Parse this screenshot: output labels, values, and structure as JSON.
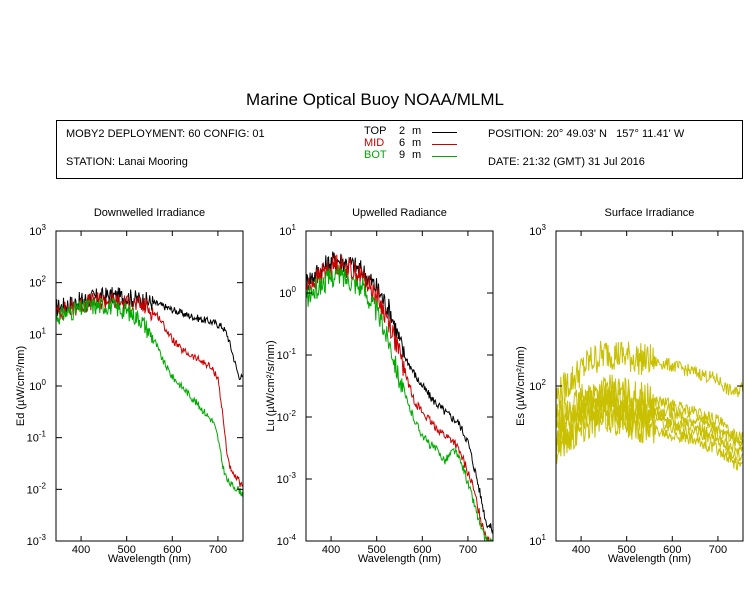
{
  "title": "Marine Optical Buoy NOAA/MLML",
  "info": {
    "deployment": "MOBY2 DEPLOYMENT: 60 CONFIG: 01",
    "station": "STATION: Lanai Mooring",
    "position": "POSITION: 20° 49.03' N   157° 11.41' W",
    "date": "DATE: 21:32 (GMT) 31 Jul 2016"
  },
  "legend": [
    {
      "label": "TOP",
      "depth": "2",
      "unit": "m",
      "color": "#000000"
    },
    {
      "label": "MID",
      "depth": "6",
      "unit": "m",
      "color": "#cc0000"
    },
    {
      "label": "BOT",
      "depth": "9",
      "unit": "m",
      "color": "#00aa00"
    }
  ],
  "chart_data": [
    {
      "type": "line",
      "title": "Downwelled Irradiance",
      "xlabel": "Wavelength (nm)",
      "ylabel_main": "Ed",
      "ylabel_units": "(µW/cm²/nm)",
      "xlim": [
        345,
        755
      ],
      "ylim": [
        0.001,
        1000
      ],
      "yscale": "log",
      "xticks": [
        400,
        500,
        600,
        700
      ],
      "ytick_exponents": [
        "-3",
        "-2",
        "-1",
        "0",
        "1",
        "2",
        "3"
      ],
      "series": [
        {
          "label": "TOP",
          "color": "#000000",
          "x": [
            345,
            380,
            420,
            460,
            500,
            540,
            570,
            600,
            630,
            660,
            690,
            710,
            720,
            730,
            745,
            755
          ],
          "y": [
            32,
            40,
            50,
            56,
            52,
            45,
            38,
            30,
            24,
            20,
            17,
            14,
            10,
            5,
            1.6,
            1.4
          ]
        },
        {
          "label": "MID",
          "color": "#cc0000",
          "x": [
            345,
            380,
            420,
            460,
            500,
            540,
            570,
            590,
            600,
            620,
            650,
            680,
            700,
            710,
            720,
            730,
            745,
            755
          ],
          "y": [
            26,
            32,
            42,
            45,
            40,
            35,
            22,
            11,
            8,
            5,
            3.5,
            2.5,
            1.5,
            0.3,
            0.05,
            0.02,
            0.015,
            0.01
          ]
        },
        {
          "label": "BOT",
          "color": "#00aa00",
          "x": [
            345,
            380,
            420,
            460,
            500,
            530,
            560,
            580,
            600,
            630,
            660,
            690,
            700,
            710,
            720,
            730,
            745,
            755
          ],
          "y": [
            22,
            28,
            35,
            36,
            28,
            20,
            8,
            3,
            1.5,
            0.8,
            0.4,
            0.2,
            0.1,
            0.03,
            0.015,
            0.012,
            0.01,
            0.008
          ]
        }
      ]
    },
    {
      "type": "line",
      "title": "Upwelled Radiance",
      "xlabel": "Wavelength (nm)",
      "ylabel_main": "Lu",
      "ylabel_units": "(µW/cm²/sr/nm)",
      "xlim": [
        345,
        755
      ],
      "ylim": [
        0.0001,
        10
      ],
      "yscale": "log",
      "xticks": [
        400,
        500,
        600,
        700
      ],
      "ytick_exponents": [
        "-4",
        "-3",
        "-2",
        "-1",
        "0",
        "1"
      ],
      "series": [
        {
          "label": "TOP",
          "color": "#000000",
          "x": [
            345,
            380,
            410,
            440,
            470,
            500,
            530,
            560,
            590,
            620,
            650,
            680,
            700,
            720,
            740,
            755
          ],
          "y": [
            1.5,
            2.5,
            3.5,
            3.0,
            2.2,
            1.2,
            0.5,
            0.1,
            0.04,
            0.02,
            0.012,
            0.008,
            0.004,
            0.001,
            0.0002,
            0.00015
          ]
        },
        {
          "label": "MID",
          "color": "#cc0000",
          "x": [
            345,
            380,
            410,
            440,
            470,
            500,
            530,
            560,
            580,
            600,
            620,
            650,
            670,
            690,
            710,
            730,
            745
          ],
          "y": [
            1.2,
            2,
            3,
            2.5,
            1.8,
            0.9,
            0.3,
            0.06,
            0.02,
            0.012,
            0.008,
            0.005,
            0.004,
            0.002,
            0.0008,
            0.0002,
            0.0001
          ]
        },
        {
          "label": "BOT",
          "color": "#00aa00",
          "x": [
            345,
            380,
            410,
            440,
            470,
            500,
            530,
            550,
            570,
            590,
            610,
            630,
            650,
            670,
            690,
            710,
            730,
            740
          ],
          "y": [
            0.8,
            1.4,
            2,
            1.7,
            1.2,
            0.5,
            0.15,
            0.04,
            0.015,
            0.007,
            0.004,
            0.003,
            0.002,
            0.003,
            0.0015,
            0.0005,
            0.00015,
            0.0001
          ]
        }
      ]
    },
    {
      "type": "line",
      "title": "Surface Irradiance",
      "xlabel": "Wavelength (nm)",
      "ylabel_main": "Es",
      "ylabel_units": "(µW/cm²/nm)",
      "xlim": [
        345,
        755
      ],
      "ylim": [
        10,
        1000
      ],
      "yscale": "log",
      "xticks": [
        400,
        500,
        600,
        700
      ],
      "ytick_exponents": [
        "1",
        "2",
        "3"
      ],
      "series": [
        {
          "color": "#c8c000",
          "x": [
            345,
            380,
            420,
            460,
            500,
            540,
            580,
            620,
            660,
            700,
            720,
            740,
            755
          ],
          "y": [
            85,
            110,
            145,
            165,
            155,
            148,
            140,
            130,
            120,
            110,
            95,
            90,
            100
          ]
        },
        {
          "color": "#c8c000",
          "x": [
            345,
            380,
            420,
            460,
            500,
            540,
            580,
            620,
            660,
            700,
            720,
            740,
            755
          ],
          "y": [
            60,
            72,
            88,
            95,
            88,
            82,
            78,
            72,
            66,
            60,
            52,
            48,
            50
          ]
        },
        {
          "color": "#c8c000",
          "x": [
            345,
            380,
            420,
            460,
            500,
            540,
            580,
            620,
            660,
            700,
            720,
            740,
            755
          ],
          "y": [
            55,
            66,
            80,
            86,
            80,
            75,
            70,
            65,
            60,
            54,
            47,
            43,
            45
          ]
        },
        {
          "color": "#c8c000",
          "x": [
            345,
            380,
            420,
            460,
            500,
            540,
            580,
            620,
            660,
            700,
            720,
            740,
            755
          ],
          "y": [
            50,
            60,
            73,
            78,
            72,
            68,
            64,
            59,
            54,
            49,
            42,
            39,
            40
          ]
        },
        {
          "color": "#c8c000",
          "x": [
            345,
            380,
            420,
            460,
            500,
            540,
            580,
            620,
            660,
            700,
            720,
            740,
            755
          ],
          "y": [
            45,
            54,
            66,
            70,
            65,
            61,
            57,
            53,
            49,
            44,
            38,
            35,
            36
          ]
        },
        {
          "color": "#c8c000",
          "x": [
            345,
            380,
            420,
            460,
            500,
            540,
            580,
            620,
            660,
            700,
            720,
            740,
            755
          ],
          "y": [
            40,
            48,
            58,
            62,
            58,
            54,
            51,
            47,
            43,
            39,
            34,
            31,
            32
          ]
        }
      ]
    }
  ]
}
